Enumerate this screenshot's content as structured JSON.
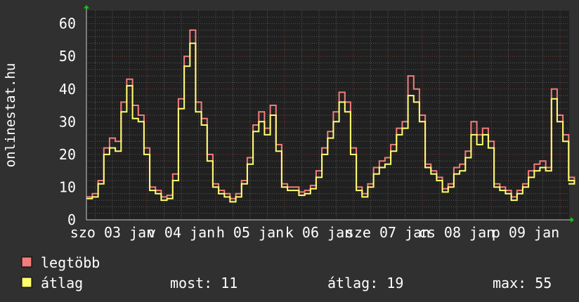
{
  "chart_data": {
    "type": "line",
    "ylabel": "onlinestat.hu",
    "ylim": [
      0,
      64
    ],
    "yticks": [
      "0",
      "10",
      "20",
      "30",
      "40",
      "50",
      "60"
    ],
    "xtick_labels": [
      "szo 03 jan",
      "v 04 jan",
      "h 05 jan",
      "k 06 jan",
      "sze 07 jan",
      "cs 08 jan",
      "p 09 jan"
    ],
    "grid": true,
    "x": [
      "03 jan 03:00",
      "03 jan 05:00",
      "03 jan 07:00",
      "03 jan 09:00",
      "03 jan 11:00",
      "03 jan 13:00",
      "03 jan 15:00",
      "03 jan 17:00",
      "03 jan 19:00",
      "03 jan 21:00",
      "03 jan 23:00",
      "04 jan 01:00",
      "04 jan 03:00",
      "04 jan 05:00",
      "04 jan 07:00",
      "04 jan 09:00",
      "04 jan 11:00",
      "04 jan 13:00",
      "04 jan 15:00",
      "04 jan 17:00",
      "04 jan 19:00",
      "04 jan 21:00",
      "04 jan 23:00",
      "05 jan 01:00",
      "05 jan 03:00",
      "05 jan 05:00",
      "05 jan 07:00",
      "05 jan 09:00",
      "05 jan 11:00",
      "05 jan 13:00",
      "05 jan 15:00",
      "05 jan 17:00",
      "05 jan 19:00",
      "05 jan 21:00",
      "05 jan 23:00",
      "06 jan 01:00",
      "06 jan 03:00",
      "06 jan 05:00",
      "06 jan 07:00",
      "06 jan 09:00",
      "06 jan 11:00",
      "06 jan 13:00",
      "06 jan 15:00",
      "06 jan 17:00",
      "06 jan 19:00",
      "06 jan 21:00",
      "06 jan 23:00",
      "07 jan 01:00",
      "07 jan 03:00",
      "07 jan 05:00",
      "07 jan 07:00",
      "07 jan 09:00",
      "07 jan 11:00",
      "07 jan 13:00",
      "07 jan 15:00",
      "07 jan 17:00",
      "07 jan 19:00",
      "07 jan 21:00",
      "07 jan 23:00",
      "08 jan 01:00",
      "08 jan 03:00",
      "08 jan 05:00",
      "08 jan 07:00",
      "08 jan 09:00",
      "08 jan 11:00",
      "08 jan 13:00",
      "08 jan 15:00",
      "08 jan 17:00",
      "08 jan 19:00",
      "08 jan 21:00",
      "08 jan 23:00",
      "09 jan 01:00",
      "09 jan 03:00",
      "09 jan 05:00",
      "09 jan 07:00",
      "09 jan 09:00",
      "09 jan 11:00",
      "09 jan 13:00",
      "09 jan 15:00",
      "09 jan 17:00",
      "09 jan 19:00",
      "09 jan 21:00",
      "09 jan 23:00",
      "10 jan 01:00",
      "10 jan 03:00",
      "10 jan 05:00"
    ],
    "series": [
      {
        "name": "legtöbb",
        "color": "#f47c7c",
        "values": [
          7,
          8,
          12,
          22,
          25,
          24,
          36,
          43,
          35,
          32,
          22,
          10,
          9,
          7,
          7.5,
          14,
          37,
          50,
          58,
          36,
          31,
          20,
          11,
          9,
          8,
          6.5,
          8,
          12,
          19,
          29,
          33,
          28,
          35,
          23,
          11,
          10,
          10,
          8.5,
          9,
          10.5,
          15,
          22,
          27,
          33,
          39,
          36,
          22,
          10,
          8,
          11,
          16,
          18,
          19,
          23,
          28,
          30,
          44,
          40,
          32,
          17,
          15,
          13,
          9.5,
          11,
          16,
          17,
          21,
          30,
          26,
          28,
          24,
          11,
          10,
          9,
          7,
          9,
          11,
          15,
          17,
          18,
          16,
          40,
          32,
          26,
          13,
          12
        ]
      },
      {
        "name": "átlag",
        "color": "#ffff70",
        "values": [
          6.5,
          7,
          11,
          20,
          22,
          21,
          33,
          41,
          31,
          30,
          20,
          9,
          8,
          6,
          6.5,
          12,
          34,
          47,
          54,
          33,
          29,
          18,
          10,
          8,
          7,
          5.5,
          7,
          11,
          17,
          27,
          30,
          26,
          32,
          21,
          10,
          9,
          9,
          7.5,
          8,
          9.5,
          13,
          20,
          25,
          30,
          36,
          33,
          20,
          9,
          7,
          10,
          14,
          16,
          17,
          21,
          26,
          28,
          38,
          36,
          30,
          16,
          14,
          12,
          8.5,
          10,
          14,
          15,
          19,
          26,
          23,
          26,
          22,
          10,
          9,
          8,
          6,
          8,
          10,
          13,
          15,
          16,
          15,
          37,
          30,
          24,
          12,
          11
        ]
      }
    ],
    "legend": {
      "placement": "bottom-left",
      "items": [
        {
          "label": "legtöbb",
          "color": "#f47c7c"
        },
        {
          "label": "átlag",
          "color": "#ffff70"
        }
      ],
      "stats": {
        "most": "most: 11",
        "atlag": "átlag: 19",
        "max": "max: 55"
      }
    },
    "colors": {
      "background": "#303030",
      "plot_background": "#202020",
      "grid_minor": "#5a5a5a",
      "grid_major": "#7a3a3a",
      "arrow": "#00cc00"
    }
  }
}
